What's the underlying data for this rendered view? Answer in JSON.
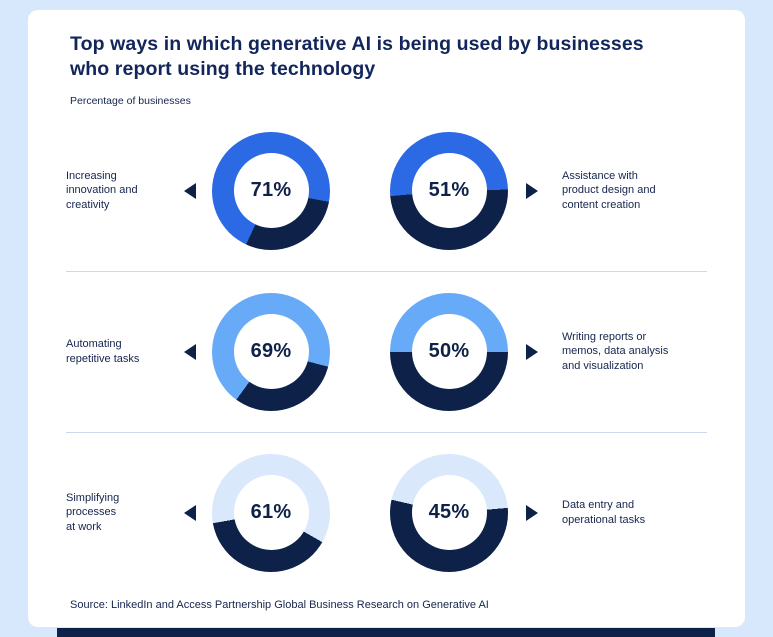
{
  "page": {
    "title": "Top ways in which generative AI is being used by businesses\nwho report using the technology",
    "subtitle": "Percentage of businesses",
    "source": "Source: LinkedIn and Access Partnership Global Business Research on Generative AI"
  },
  "colors": {
    "background": "#d8e8fc",
    "card": "#ffffff",
    "navy": "#0e2148",
    "title": "#13265c",
    "label": "#16254e",
    "separator": "#ccd9ec"
  },
  "chart_data": {
    "type": "pie",
    "subtype": "donut-grid",
    "unit": "%",
    "title": "Top ways in which generative AI is being used by businesses who report using the technology",
    "subtitle": "Percentage of businesses",
    "source": "Source: LinkedIn and Access Partnership Global Business Research on Generative AI",
    "rows": [
      {
        "accent": "#2b6ae4",
        "left": {
          "label": "Increasing\ninnovation and\ncreativity",
          "value": 71,
          "value_label": "71%",
          "start": 205
        },
        "right": {
          "label": "Assistance with\nproduct design and\ncontent creation",
          "value": 51,
          "value_label": "51%",
          "start": 265
        }
      },
      {
        "accent": "#66aaf8",
        "left": {
          "label": "Automating\nrepetitive tasks",
          "value": 69,
          "value_label": "69%",
          "start": 216
        },
        "right": {
          "label": "Writing reports or\nmemos, data analysis\nand visualization",
          "value": 50,
          "value_label": "50%",
          "start": 270
        }
      },
      {
        "accent": "#d9e8fb",
        "left": {
          "label": "Simplifying\nprocesses\nat work",
          "value": 61,
          "value_label": "61%",
          "start": 260
        },
        "right": {
          "label": "Data entry and\noperational tasks",
          "value": 45,
          "value_label": "45%",
          "start": 283
        }
      }
    ]
  }
}
